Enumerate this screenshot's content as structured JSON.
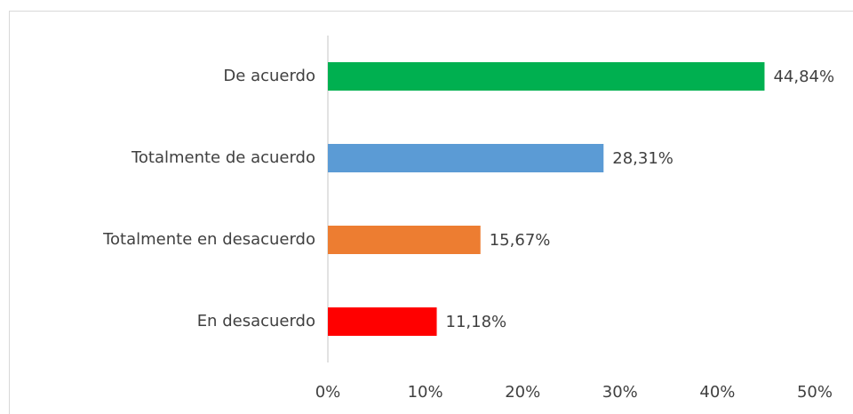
{
  "chart_data": {
    "type": "hbar",
    "categories": [
      "De acuerdo",
      "Totalmente de acuerdo",
      "Totalmente en desacuerdo",
      "En desacuerdo"
    ],
    "values": [
      44.84,
      28.31,
      15.67,
      11.18
    ],
    "value_labels": [
      "44,84%",
      "28,31%",
      "15,67%",
      "11,18%"
    ],
    "colors": [
      "#00b050",
      "#5b9bd5",
      "#ed7d31",
      "#ff0000"
    ],
    "xlim": [
      0,
      50
    ],
    "xticks": [
      {
        "value": 0,
        "label": "0%"
      },
      {
        "value": 10,
        "label": "10%"
      },
      {
        "value": 20,
        "label": "20%"
      },
      {
        "value": 30,
        "label": "30%"
      },
      {
        "value": 40,
        "label": "40%"
      },
      {
        "value": 50,
        "label": "50%"
      }
    ],
    "grid": false
  }
}
